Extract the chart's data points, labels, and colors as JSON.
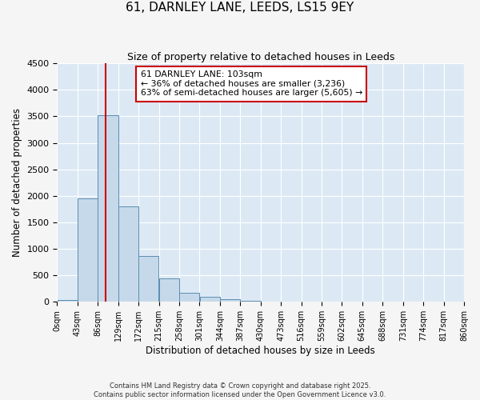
{
  "title": "61, DARNLEY LANE, LEEDS, LS15 9EY",
  "subtitle": "Size of property relative to detached houses in Leeds",
  "xlabel": "Distribution of detached houses by size in Leeds",
  "ylabel": "Number of detached properties",
  "bin_labels": [
    "0sqm",
    "43sqm",
    "86sqm",
    "129sqm",
    "172sqm",
    "215sqm",
    "258sqm",
    "301sqm",
    "344sqm",
    "387sqm",
    "430sqm",
    "473sqm",
    "516sqm",
    "559sqm",
    "602sqm",
    "645sqm",
    "688sqm",
    "731sqm",
    "774sqm",
    "817sqm",
    "860sqm"
  ],
  "bin_edges": [
    0,
    43,
    86,
    129,
    172,
    215,
    258,
    301,
    344,
    387,
    430,
    473,
    516,
    559,
    602,
    645,
    688,
    731,
    774,
    817,
    860
  ],
  "bar_values": [
    30,
    1950,
    3520,
    1800,
    860,
    450,
    170,
    90,
    50,
    25,
    0,
    0,
    0,
    0,
    0,
    0,
    0,
    0,
    0,
    0
  ],
  "bar_color": "#c6d9ea",
  "bar_edge_color": "#5b8db0",
  "property_value": 103,
  "vline_color": "#cc0000",
  "annotation_title": "61 DARNLEY LANE: 103sqm",
  "annotation_line1": "← 36% of detached houses are smaller (3,236)",
  "annotation_line2": "63% of semi-detached houses are larger (5,605) →",
  "annotation_box_facecolor": "#ffffff",
  "annotation_box_edgecolor": "#cc0000",
  "ylim": [
    0,
    4500
  ],
  "yticks": [
    0,
    500,
    1000,
    1500,
    2000,
    2500,
    3000,
    3500,
    4000,
    4500
  ],
  "background_color": "#dce9f5",
  "fig_background_color": "#f5f5f5",
  "grid_color": "#ffffff",
  "footnote1": "Contains HM Land Registry data © Crown copyright and database right 2025.",
  "footnote2": "Contains public sector information licensed under the Open Government Licence v3.0."
}
